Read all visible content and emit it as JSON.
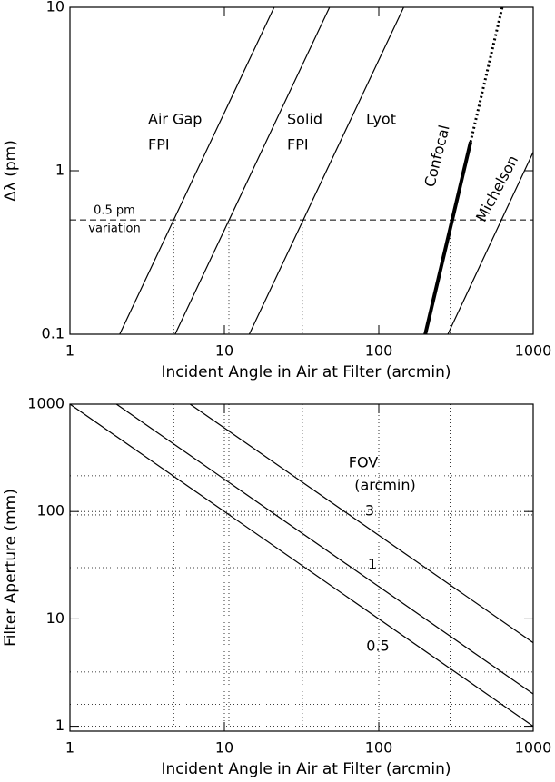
{
  "chart_data": [
    {
      "type": "line",
      "xlabel": "Incident Angle in Air at Filter (arcmin)",
      "ylabel": "Δλ  (pm)",
      "xscale": "log",
      "yscale": "log",
      "xlim": [
        1,
        1000
      ],
      "ylim": [
        0.1,
        10
      ],
      "xticks": [
        1,
        10,
        100,
        1000
      ],
      "yticks": [
        0.1,
        1,
        10
      ],
      "series": [
        {
          "label": [
            "Air Gap",
            "FPI"
          ],
          "color": "#000000",
          "width": 1.2,
          "style": "solid",
          "x": [
            2.1,
            21
          ],
          "values": [
            0.1,
            10
          ]
        },
        {
          "label": [
            "Solid",
            "FPI"
          ],
          "color": "#000000",
          "width": 1.2,
          "style": "solid",
          "x": [
            4.8,
            48
          ],
          "values": [
            0.1,
            10
          ]
        },
        {
          "label": [
            "Lyot"
          ],
          "color": "#000000",
          "width": 1.2,
          "style": "solid",
          "x": [
            14.5,
            145
          ],
          "values": [
            0.1,
            10
          ]
        },
        {
          "label": [
            "Confocal"
          ],
          "color": "#000000",
          "width": 4,
          "style": "solid",
          "x": [
            200,
            393
          ],
          "values": [
            0.1,
            1.5
          ]
        },
        {
          "color": "#000000",
          "width": 3,
          "style": "dotted",
          "x": [
            393,
            630
          ],
          "values": [
            1.5,
            10
          ]
        },
        {
          "label": [
            "Michelson"
          ],
          "color": "#000000",
          "width": 1.2,
          "style": "solid",
          "x": [
            280,
            1000
          ],
          "values": [
            0.1,
            1.3
          ]
        }
      ],
      "hline": 0.5,
      "hline_label": [
        "0.5 pm",
        "variation"
      ],
      "vlines": [
        4.7,
        10.7,
        32,
        290,
        610
      ]
    },
    {
      "type": "line",
      "xlabel": "Incident Angle in Air at Filter (arcmin)",
      "ylabel": "Filter Aperture (mm)",
      "xscale": "log",
      "yscale": "log",
      "xlim": [
        1,
        1000
      ],
      "ylim": [
        0.9,
        1000
      ],
      "xticks": [
        1,
        10,
        100,
        1000
      ],
      "yticks": [
        1,
        10,
        100,
        1000
      ],
      "grid": true,
      "legend_title": [
        "FOV",
        "(arcmin)"
      ],
      "series": [
        {
          "label": [
            "3"
          ],
          "color": "#000000",
          "width": 1.2,
          "style": "solid",
          "x": [
            6,
            1000
          ],
          "values": [
            1000,
            6
          ]
        },
        {
          "label": [
            "1"
          ],
          "color": "#000000",
          "width": 1.2,
          "style": "solid",
          "x": [
            2,
            1000
          ],
          "values": [
            1000,
            2
          ]
        },
        {
          "label": [
            "0.5"
          ],
          "color": "#000000",
          "width": 1.2,
          "style": "solid",
          "x": [
            1,
            1000
          ],
          "values": [
            1000,
            1
          ]
        }
      ],
      "hlines": [
        215,
        93,
        30,
        3.2,
        1.6
      ],
      "vlines": [
        4.7,
        10.7,
        32,
        290,
        610
      ]
    }
  ]
}
